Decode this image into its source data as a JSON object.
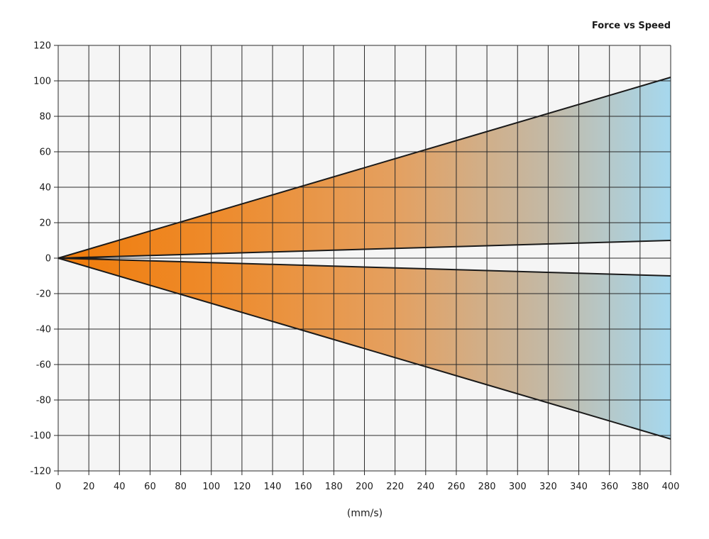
{
  "chart_data": {
    "type": "area",
    "title": "Force vs Speed",
    "xlabel": "(mm/s)",
    "ylabel": "",
    "xlim": [
      0,
      400
    ],
    "ylim": [
      -120,
      120
    ],
    "x_ticks": [
      0,
      20,
      40,
      60,
      80,
      100,
      120,
      140,
      160,
      180,
      200,
      220,
      240,
      260,
      280,
      300,
      320,
      340,
      360,
      380,
      400
    ],
    "y_ticks": [
      120,
      100,
      80,
      60,
      40,
      20,
      0,
      -20,
      -40,
      -60,
      -80,
      -100,
      -120
    ],
    "grid": true,
    "gradient_colors": [
      "#f07c0a",
      "#a6d8ee"
    ],
    "plot_background": "#f5f5f5",
    "bands": [
      {
        "upper": {
          "x": [
            0,
            400
          ],
          "y": [
            0,
            102
          ]
        },
        "lower": {
          "x": [
            0,
            400
          ],
          "y": [
            0,
            10
          ]
        }
      },
      {
        "upper": {
          "x": [
            0,
            400
          ],
          "y": [
            0,
            -10
          ]
        },
        "lower": {
          "x": [
            0,
            400
          ],
          "y": [
            0,
            -102
          ]
        }
      }
    ]
  }
}
